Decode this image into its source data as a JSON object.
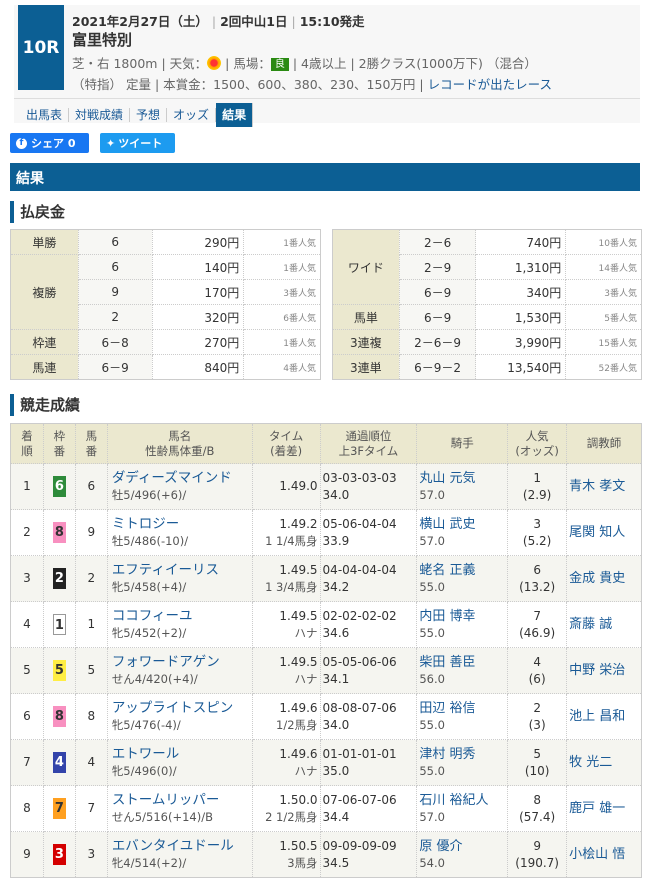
{
  "race": {
    "number": "10R",
    "date": "2021年2月27日（土）",
    "meeting": "2回中山1日",
    "post_time": "15:10発走",
    "name": "富里特別",
    "course": "芝・右 1800m",
    "weather_label": "天気：",
    "weather_icon": "sun-icon",
    "track_label": "馬場：",
    "track": "良",
    "age": "4歳以上",
    "class": "2勝クラス(1000万下) （混合）",
    "condition": "（特指） 定量",
    "prize": "本賞金：1500、600、380、230、150万円",
    "record_link": "レコードが出たレース"
  },
  "nav": [
    "出馬表",
    "対戦成績",
    "予想",
    "オッズ",
    "結果"
  ],
  "share": {
    "facebook": "シェア 0",
    "twitter": "ツイート"
  },
  "section_title": "結果",
  "payout_title": "払戻金",
  "results_title": "競走成績",
  "payouts_left": [
    {
      "type": "単勝",
      "rows": [
        [
          "6",
          "290円",
          "1番人気"
        ]
      ]
    },
    {
      "type": "複勝",
      "rows": [
        [
          "6",
          "140円",
          "1番人気"
        ],
        [
          "9",
          "170円",
          "3番人気"
        ],
        [
          "2",
          "320円",
          "6番人気"
        ]
      ]
    },
    {
      "type": "枠連",
      "rows": [
        [
          "6－8",
          "270円",
          "1番人気"
        ]
      ]
    },
    {
      "type": "馬連",
      "rows": [
        [
          "6－9",
          "840円",
          "4番人気"
        ]
      ]
    }
  ],
  "payouts_right": [
    {
      "type": "ワイド",
      "rows": [
        [
          "2－6",
          "740円",
          "10番人気"
        ],
        [
          "2－9",
          "1,310円",
          "14番人気"
        ],
        [
          "6－9",
          "340円",
          "3番人気"
        ]
      ]
    },
    {
      "type": "馬単",
      "rows": [
        [
          "6－9",
          "1,530円",
          "5番人気"
        ]
      ]
    },
    {
      "type": "3連複",
      "rows": [
        [
          "2－6－9",
          "3,990円",
          "15番人気"
        ]
      ]
    },
    {
      "type": "3連単",
      "rows": [
        [
          "6－9－2",
          "13,540円",
          "52番人気"
        ]
      ]
    }
  ],
  "columns": [
    [
      "着",
      "順"
    ],
    [
      "枠",
      "番"
    ],
    [
      "馬",
      "番"
    ],
    [
      "馬名",
      "性齢馬体重/B"
    ],
    [
      "タイム",
      "(着差)"
    ],
    [
      "通過順位",
      "上3Fタイム"
    ],
    [
      "騎手"
    ],
    [
      "人気",
      "(オッズ)"
    ],
    [
      "調教師"
    ]
  ],
  "frame_colors": {
    "1": [
      "#ffffff",
      "#333"
    ],
    "2": [
      "#222222",
      "#fff"
    ],
    "3": [
      "#d40000",
      "#fff"
    ],
    "4": [
      "#3344aa",
      "#fff"
    ],
    "5": [
      "#ffee44",
      "#333"
    ],
    "6": [
      "#2e8b3a",
      "#fff"
    ],
    "7": [
      "#ffa020",
      "#333"
    ],
    "8": [
      "#f890c0",
      "#333"
    ]
  },
  "results": [
    {
      "rank": "1",
      "frame": "6",
      "num": "6",
      "horse": "ダディーズマインド",
      "info": "牡5/496(+6)/",
      "time": "1.49.0",
      "margin": "",
      "passing": "03-03-03-03",
      "last3f": "34.0",
      "jockey": "丸山 元気",
      "weight": "57.0",
      "pop": "1",
      "odds": "(2.9)",
      "trainer": "青木 孝文"
    },
    {
      "rank": "2",
      "frame": "8",
      "num": "9",
      "horse": "ミトロジー",
      "info": "牡5/486(-10)/",
      "time": "1.49.2",
      "margin": "1 1/4馬身",
      "passing": "05-06-04-04",
      "last3f": "33.9",
      "jockey": "横山 武史",
      "weight": "57.0",
      "pop": "3",
      "odds": "(5.2)",
      "trainer": "尾関 知人"
    },
    {
      "rank": "3",
      "frame": "2",
      "num": "2",
      "horse": "エフティイーリス",
      "info": "牝5/458(+4)/",
      "time": "1.49.5",
      "margin": "1 3/4馬身",
      "passing": "04-04-04-04",
      "last3f": "34.2",
      "jockey": "蛯名 正義",
      "weight": "55.0",
      "pop": "6",
      "odds": "(13.2)",
      "trainer": "金成 貴史"
    },
    {
      "rank": "4",
      "frame": "1",
      "num": "1",
      "horse": "ココフィーユ",
      "info": "牝5/452(+2)/",
      "time": "1.49.5",
      "margin": "ハナ",
      "passing": "02-02-02-02",
      "last3f": "34.6",
      "jockey": "内田 博幸",
      "weight": "55.0",
      "pop": "7",
      "odds": "(46.9)",
      "trainer": "斎藤 誠"
    },
    {
      "rank": "5",
      "frame": "5",
      "num": "5",
      "horse": "フォワードアゲン",
      "info": "せん4/420(+4)/",
      "time": "1.49.5",
      "margin": "ハナ",
      "passing": "05-05-06-06",
      "last3f": "34.1",
      "jockey": "柴田 善臣",
      "weight": "56.0",
      "pop": "4",
      "odds": "(6)",
      "trainer": "中野 栄治"
    },
    {
      "rank": "6",
      "frame": "8",
      "num": "8",
      "horse": "アップライトスピン",
      "info": "牝5/476(-4)/",
      "time": "1.49.6",
      "margin": "1/2馬身",
      "passing": "08-08-07-06",
      "last3f": "34.0",
      "jockey": "田辺 裕信",
      "weight": "55.0",
      "pop": "2",
      "odds": "(3)",
      "trainer": "池上 昌和"
    },
    {
      "rank": "7",
      "frame": "4",
      "num": "4",
      "horse": "エトワール",
      "info": "牝5/496(0)/",
      "time": "1.49.6",
      "margin": "ハナ",
      "passing": "01-01-01-01",
      "last3f": "35.0",
      "jockey": "津村 明秀",
      "weight": "55.0",
      "pop": "5",
      "odds": "(10)",
      "trainer": "牧 光二"
    },
    {
      "rank": "8",
      "frame": "7",
      "num": "7",
      "horse": "ストームリッパー",
      "info": "せん5/516(+14)/B",
      "time": "1.50.0",
      "margin": "2 1/2馬身",
      "passing": "07-06-07-06",
      "last3f": "34.4",
      "jockey": "石川 裕紀人",
      "weight": "57.0",
      "pop": "8",
      "odds": "(57.4)",
      "trainer": "鹿戸 雄一"
    },
    {
      "rank": "9",
      "frame": "3",
      "num": "3",
      "horse": "エバンタイユドール",
      "info": "牝4/514(+2)/",
      "time": "1.50.5",
      "margin": "3馬身",
      "passing": "09-09-09-09",
      "last3f": "34.5",
      "jockey": "原 優介",
      "weight": "54.0",
      "pop": "9",
      "odds": "(190.7)",
      "trainer": "小桧山 悟"
    }
  ]
}
